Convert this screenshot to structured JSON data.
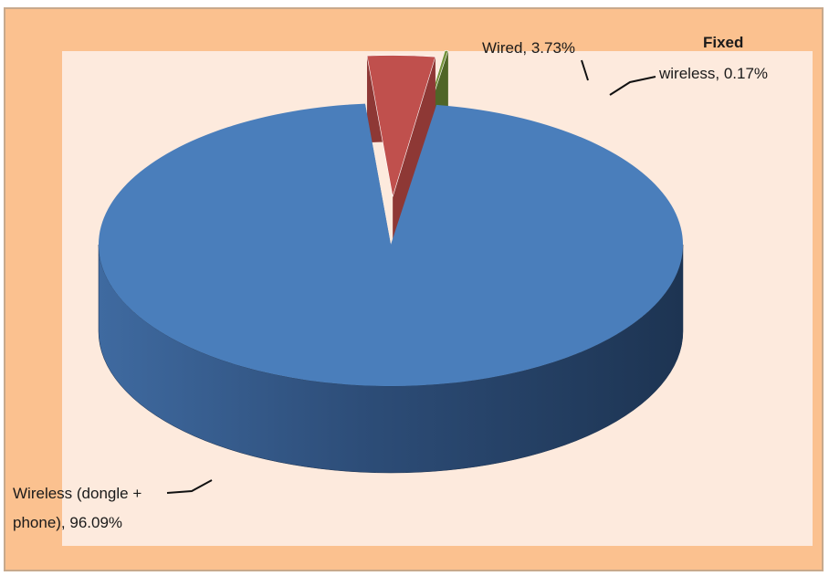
{
  "chart_data": {
    "type": "pie",
    "title": "",
    "slices": [
      {
        "label_lines": [
          "Wireless (dongle +",
          "phone), 96.09%"
        ],
        "category": "Wireless (dongle + phone)",
        "value": 96.09,
        "color": "#4a7ebb"
      },
      {
        "label_lines": [
          "Wired, 3.73%"
        ],
        "category": "Wired",
        "value": 3.73,
        "color": "#c0504d"
      },
      {
        "label_lines": [
          "Fixed",
          "wireless, 0.17%"
        ],
        "category": "Fixed wireless",
        "value": 0.17,
        "color": "#76923c"
      }
    ],
    "style": "3d-exploded",
    "unit": "%"
  }
}
